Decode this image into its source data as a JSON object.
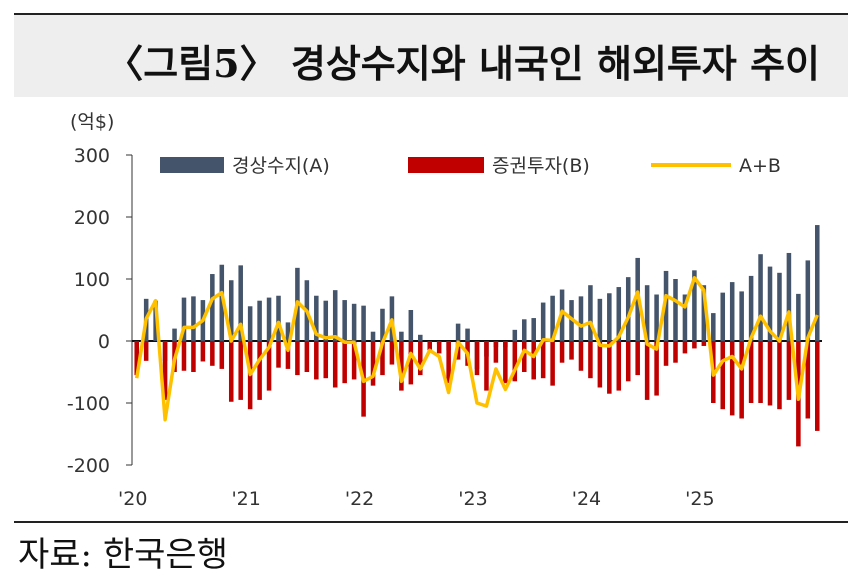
{
  "title": "〈그림5〉 경상수지와 내국인 해외투자 추이",
  "source": "자료: 한국은행",
  "colors": {
    "current_account": "#44546a",
    "securities": "#c00000",
    "sum_line": "#ffc000"
  },
  "chart_data": {
    "type": "bar",
    "title": "〈그림5〉 경상수지와 내국인 해외투자 추이",
    "ylabel": "(억$)",
    "ylim": [
      -200,
      300
    ],
    "yticks": [
      300,
      200,
      100,
      0,
      -100,
      -200
    ],
    "ytick_labels": [
      "300",
      "200",
      "100",
      "0",
      "-100",
      "-200"
    ],
    "xtick_labels": [
      "'20",
      "'21",
      "'22",
      "'23",
      "'24",
      "'25"
    ],
    "xtick_indices": [
      0,
      12,
      24,
      36,
      48,
      60
    ],
    "legend": [
      "경상수지(A)",
      "증권투자(B)",
      "A+B"
    ],
    "legend_position": "top",
    "series": [
      {
        "name": "경상수지(A)",
        "values": [
          -5,
          68,
          65,
          -32,
          20,
          70,
          72,
          66,
          108,
          123,
          98,
          122,
          56,
          65,
          70,
          73,
          30,
          118,
          98,
          73,
          65,
          82,
          66,
          60,
          57,
          15,
          52,
          72,
          15,
          50,
          10,
          0,
          -5,
          -15,
          28,
          20,
          -45,
          -25,
          -10,
          -10,
          18,
          35,
          37,
          62,
          73,
          83,
          66,
          72,
          90,
          68,
          77,
          87,
          103,
          134,
          90,
          75,
          113,
          100,
          75,
          114,
          90,
          45,
          78,
          95,
          80,
          105,
          140,
          120,
          110,
          142,
          76,
          130,
          187
        ],
        "color": "#44546a"
      },
      {
        "name": "증권투자(B)",
        "values": [
          -55,
          -32,
          0,
          -95,
          -50,
          -48,
          -50,
          -33,
          -40,
          -45,
          -98,
          -95,
          -110,
          -95,
          -80,
          -43,
          -45,
          -55,
          -50,
          -62,
          -60,
          -75,
          -68,
          -62,
          -122,
          -72,
          -55,
          -38,
          -80,
          -70,
          -55,
          -15,
          -20,
          -68,
          -30,
          -40,
          -55,
          -80,
          -35,
          -68,
          -65,
          -50,
          -62,
          -60,
          -72,
          -35,
          -30,
          -48,
          -60,
          -75,
          -85,
          -80,
          -65,
          -55,
          -95,
          -88,
          -40,
          -35,
          -20,
          -12,
          -8,
          -100,
          -110,
          -120,
          -125,
          -100,
          -100,
          -104,
          -110,
          -95,
          -170,
          -125,
          -145
        ]
      },
      {
        "name": "A+B",
        "values": [
          -60,
          36,
          65,
          -127,
          -30,
          22,
          22,
          33,
          68,
          78,
          0,
          27,
          -54,
          -30,
          -10,
          30,
          -15,
          63,
          48,
          11,
          5,
          7,
          -2,
          -2,
          -65,
          -57,
          -3,
          34,
          -65,
          -20,
          -45,
          -15,
          -25,
          -83,
          -2,
          -20,
          -100,
          -105,
          -45,
          -78,
          -47,
          -15,
          -25,
          2,
          1,
          48,
          36,
          24,
          30,
          -7,
          -8,
          7,
          38,
          79,
          -5,
          -13,
          73,
          65,
          55,
          102,
          82,
          -55,
          -32,
          -25,
          -45,
          5,
          40,
          16,
          0,
          47,
          -94,
          5,
          42
        ]
      }
    ]
  }
}
